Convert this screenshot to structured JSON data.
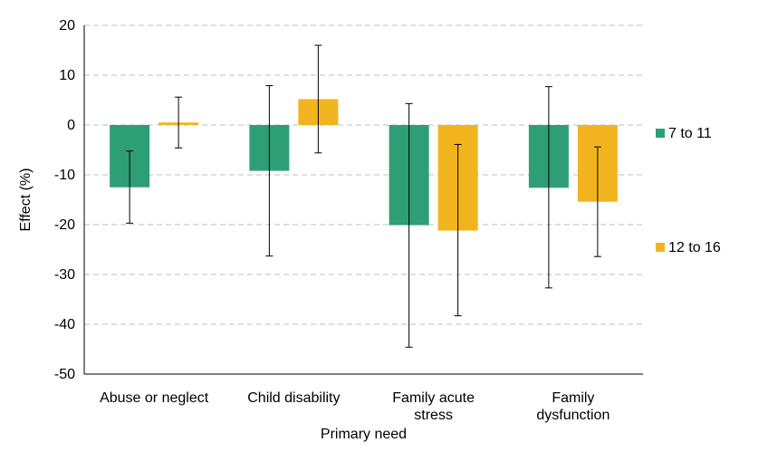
{
  "chart_data": {
    "type": "bar",
    "title": "",
    "xlabel": "Primary need",
    "ylabel": "Effect (%)",
    "ylim": [
      -50,
      20
    ],
    "yticks": [
      20,
      10,
      0,
      -10,
      -20,
      -30,
      -40,
      -50
    ],
    "grid": true,
    "legend_position": "right",
    "categories": [
      [
        "Abuse or neglect"
      ],
      [
        "Child disability"
      ],
      [
        "Family acute",
        "stress"
      ],
      [
        "Family",
        "dysfunction"
      ]
    ],
    "series": [
      {
        "name": "7 to 11",
        "color": "#2e9e77",
        "values": [
          -12.5,
          -9.2,
          -20.1,
          -12.6
        ],
        "error_low": [
          -19.7,
          -26.3,
          -44.6,
          -32.7
        ],
        "error_high": [
          -5.2,
          7.9,
          4.3,
          7.7
        ]
      },
      {
        "name": "12 to 16",
        "color": "#f2b41e",
        "values": [
          0.5,
          5.2,
          -21.2,
          -15.4
        ],
        "error_low": [
          -4.6,
          -5.6,
          -38.3,
          -26.4
        ],
        "error_high": [
          5.6,
          16.0,
          -3.9,
          -4.4
        ]
      }
    ]
  }
}
